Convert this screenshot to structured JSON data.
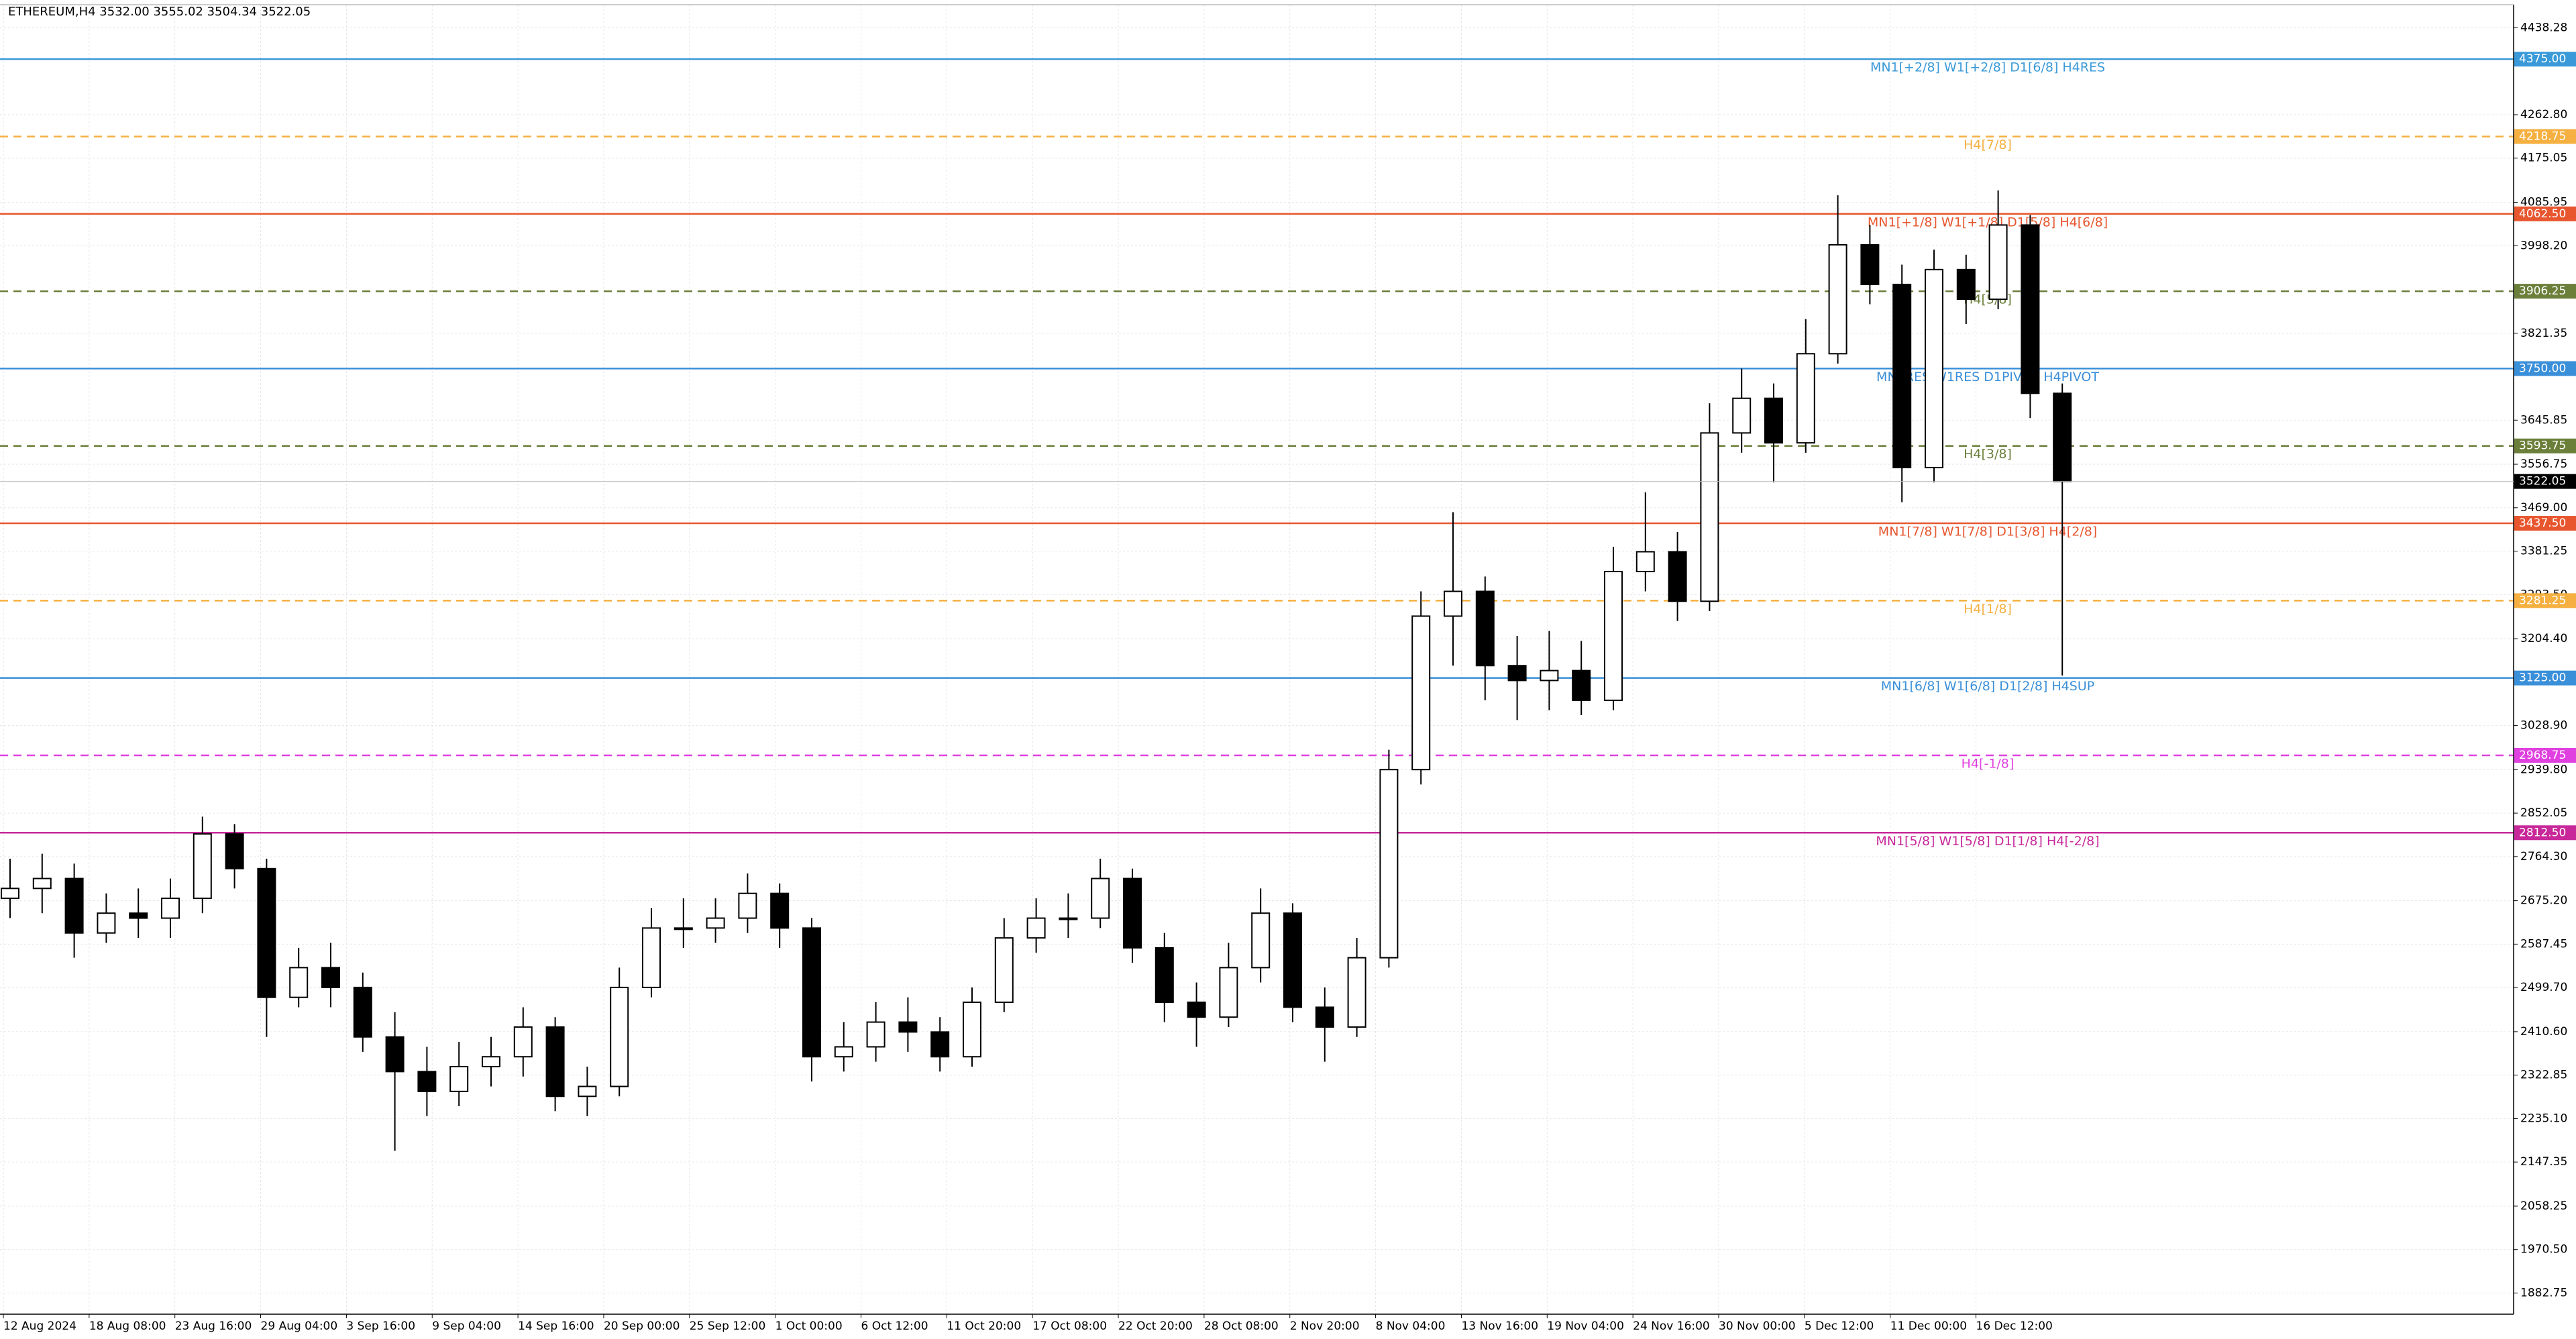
{
  "chart_data": {
    "type": "candlestick",
    "title": "ETHEREUM,H4  3532.00 3555.02 3504.34 3522.05",
    "xlabels": [
      "12 Aug 2024",
      "18 Aug 08:00",
      "23 Aug 16:00",
      "29 Aug 04:00",
      "3 Sep 16:00",
      "9 Sep 04:00",
      "14 Sep 16:00",
      "20 Sep 00:00",
      "25 Sep 12:00",
      "1 Oct 00:00",
      "6 Oct 12:00",
      "11 Oct 20:00",
      "17 Oct 08:00",
      "22 Oct 20:00",
      "28 Oct 08:00",
      "2 Nov 20:00",
      "8 Nov 04:00",
      "13 Nov 16:00",
      "19 Nov 04:00",
      "24 Nov 16:00",
      "30 Nov 00:00",
      "5 Dec 12:00",
      "11 Dec 00:00",
      "16 Dec 12:00"
    ],
    "open": [
      2680,
      2700,
      2720,
      2610,
      2650,
      2640,
      2680,
      2810,
      2740,
      2480,
      2540,
      2500,
      2400,
      2330,
      2290,
      2340,
      2360,
      2420,
      2280,
      2300,
      2500,
      2620,
      2620,
      2640,
      2690,
      2620,
      2360,
      2380,
      2430,
      2410,
      2360,
      2470,
      2600,
      2640,
      2640,
      2720,
      2580,
      2470,
      2440,
      2540,
      2650,
      2460,
      2420,
      2560,
      2940,
      3250,
      3300,
      3150,
      3120,
      3140,
      3080,
      3340,
      3380,
      3280,
      3620,
      3690,
      3600,
      3780,
      4000,
      3920,
      3550,
      3950,
      3890,
      4040,
      3700
    ],
    "high": [
      2760,
      2770,
      2750,
      2690,
      2700,
      2720,
      2845,
      2830,
      2760,
      2580,
      2590,
      2530,
      2450,
      2380,
      2390,
      2400,
      2460,
      2440,
      2340,
      2540,
      2660,
      2680,
      2680,
      2730,
      2710,
      2640,
      2430,
      2470,
      2480,
      2440,
      2500,
      2640,
      2680,
      2690,
      2760,
      2740,
      2610,
      2510,
      2590,
      2700,
      2670,
      2500,
      2600,
      2980,
      3300,
      3460,
      3330,
      3210,
      3220,
      3200,
      3390,
      3500,
      3420,
      3680,
      3750,
      3720,
      3850,
      4100,
      4040,
      3960,
      3990,
      3980,
      4110,
      4060,
      3720
    ],
    "low": [
      2640,
      2650,
      2560,
      2590,
      2600,
      2600,
      2650,
      2700,
      2400,
      2460,
      2460,
      2370,
      2170,
      2240,
      2260,
      2300,
      2320,
      2250,
      2240,
      2280,
      2480,
      2580,
      2590,
      2610,
      2580,
      2310,
      2330,
      2350,
      2370,
      2330,
      2340,
      2450,
      2570,
      2600,
      2620,
      2550,
      2430,
      2380,
      2420,
      2510,
      2430,
      2350,
      2400,
      2540,
      2910,
      3150,
      3080,
      3040,
      3060,
      3050,
      3060,
      3300,
      3240,
      3260,
      3580,
      3520,
      3580,
      3760,
      3880,
      3480,
      3520,
      3840,
      3870,
      3650,
      3130
    ],
    "close": [
      2700,
      2720,
      2610,
      2650,
      2640,
      2680,
      2810,
      2740,
      2480,
      2540,
      2500,
      2400,
      2330,
      2290,
      2340,
      2360,
      2420,
      2280,
      2300,
      2500,
      2620,
      2620,
      2640,
      2690,
      2620,
      2360,
      2380,
      2430,
      2410,
      2360,
      2470,
      2600,
      2640,
      2640,
      2720,
      2580,
      2470,
      2440,
      2540,
      2650,
      2460,
      2420,
      2560,
      2940,
      3250,
      3300,
      3150,
      3120,
      3140,
      3080,
      3340,
      3380,
      3280,
      3620,
      3690,
      3600,
      3780,
      4000,
      3920,
      3550,
      3950,
      3890,
      4040,
      3700,
      3522
    ],
    "ylim": [
      1840,
      4485
    ],
    "yticks": [
      4438.28,
      {
        "value": 4262.8,
        "label": "4262.80"
      },
      4175.05,
      4085.95,
      {
        "value": 3998.2,
        "label": "3998.20"
      },
      3821.35,
      3645.85,
      3556.75,
      {
        "value": 3469.0,
        "label": "3469.00"
      },
      3381.25,
      {
        "value": 3293.5,
        "label": "3293.50"
      },
      {
        "value": 3204.4,
        "label": "3204.40"
      },
      {
        "value": 3028.9,
        "label": "3028.90"
      },
      {
        "value": 2939.8,
        "label": "2939.80"
      },
      2852.05,
      {
        "value": 2764.3,
        "label": "2764.30"
      },
      {
        "value": 2675.2,
        "label": "2675.20"
      },
      2587.45,
      {
        "value": 2499.7,
        "label": "2499.70"
      },
      {
        "value": 2410.6,
        "label": "2410.60"
      },
      2322.85,
      {
        "value": 2235.1,
        "label": "2235.10"
      },
      2147.35,
      2058.25,
      {
        "value": 1970.5,
        "label": "1970.50"
      },
      1882.75
    ],
    "grid": true,
    "levels": {
      "names": [
        "MN1[+2/8] W1[+2/8] D1[6/8] H4RES",
        "H4[7/8]",
        "MN1[+1/8] W1[+1/8] D1[5/8] H4[6/8]",
        "H4[5/8]",
        "MN1RES W1RES D1PIVOT H4PIVOT",
        "H4[3/8]",
        "MN1[7/8] W1[7/8] D1[3/8] H4[2/8]",
        "H4[1/8]",
        "MN1[6/8] W1[6/8] D1[2/8] H4SUP",
        "H4[-1/8]",
        "MN1[5/8] W1[5/8] D1[1/8] H4[-2/8]"
      ],
      "values": [
        4375,
        4218.75,
        4062.5,
        3906.25,
        3750,
        3593.75,
        3437.5,
        3281.25,
        3125,
        2968.75,
        2812.5
      ],
      "value_labels": [
        "4375.00",
        "4218.75",
        "4062.50",
        "3906.25",
        "3750.00",
        "3593.75",
        "3437.50",
        "3281.25",
        "3125.00",
        "2968.75",
        "2812.50"
      ],
      "colors": [
        "#3a9ad9",
        "#f5b041",
        "#e8562f",
        "#6b7f3a",
        "#3a8fd9",
        "#6b7f3a",
        "#e8562f",
        "#f5b041",
        "#3a8fd9",
        "#e040e0",
        "#c8289a"
      ],
      "dashed": [
        false,
        true,
        false,
        true,
        false,
        true,
        false,
        true,
        false,
        true,
        false
      ]
    },
    "current": 3522.05
  }
}
